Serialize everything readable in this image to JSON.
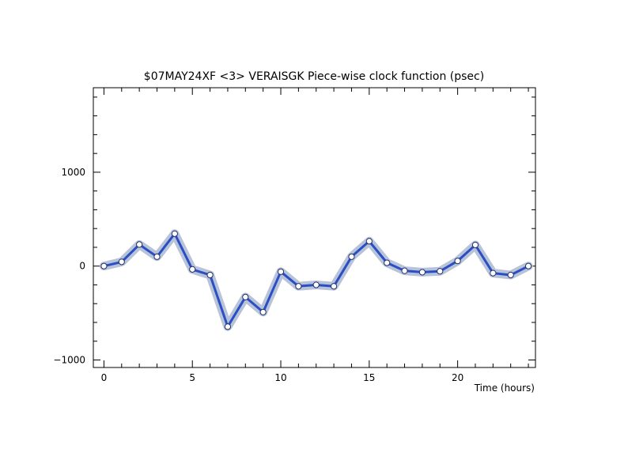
{
  "chart_data": {
    "type": "line",
    "title": "$07MAY24XF <3>  VERAISGK  Piece-wise clock function (psec)",
    "xlabel": "Time (hours)",
    "ylabel": "",
    "xlim": [
      -0.6,
      24.4
    ],
    "ylim": [
      -1080,
      1900
    ],
    "xticks": [
      0,
      5,
      10,
      15,
      20
    ],
    "xtick_labels": [
      "0",
      "5",
      "10",
      "15",
      "20"
    ],
    "yticks": [
      -1000,
      0,
      1000
    ],
    "ytick_labels": [
      "−1000",
      "0",
      "1000"
    ],
    "grid": false,
    "series": [
      {
        "x": [
          0,
          1,
          2,
          3,
          4,
          5,
          6,
          7,
          8,
          9,
          10,
          11,
          12,
          13,
          14,
          15,
          16,
          17,
          18,
          19,
          20,
          21,
          22,
          23,
          24
        ],
        "values": [
          0,
          45,
          230,
          100,
          345,
          -35,
          -95,
          -645,
          -330,
          -490,
          -60,
          -215,
          -200,
          -215,
          100,
          265,
          35,
          -50,
          -65,
          -55,
          55,
          225,
          -75,
          -95,
          0
        ],
        "color": "#2a4fc4",
        "band_color": "#b8c2d8"
      }
    ]
  }
}
